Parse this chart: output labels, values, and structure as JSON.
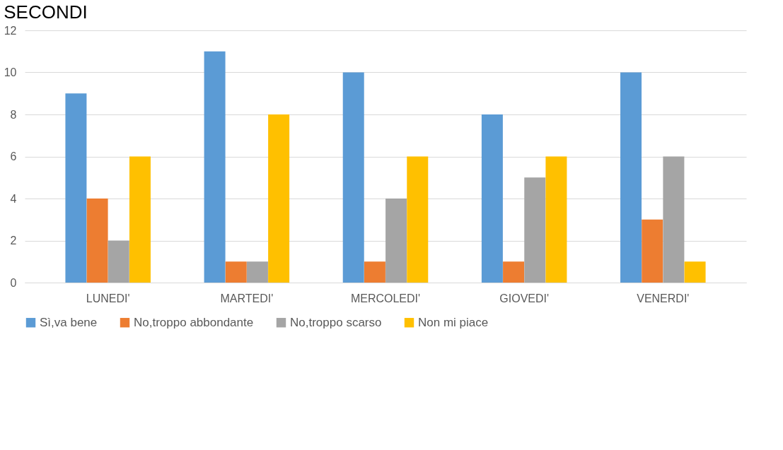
{
  "chart_data": {
    "type": "bar",
    "title": "SECONDI",
    "categories": [
      "LUNEDI'",
      "MARTEDI'",
      "MERCOLEDI'",
      "GIOVEDI'",
      "VENERDI'"
    ],
    "series": [
      {
        "name": "Sì,va bene",
        "color": "#5b9bd5",
        "values": [
          9,
          11,
          10,
          8,
          10
        ]
      },
      {
        "name": "No,troppo abbondante",
        "color": "#ed7d31",
        "values": [
          4,
          1,
          1,
          1,
          3
        ]
      },
      {
        "name": "No,troppo scarso",
        "color": "#a5a5a5",
        "values": [
          2,
          1,
          4,
          5,
          6
        ]
      },
      {
        "name": "Non mi piace",
        "color": "#ffc000",
        "values": [
          6,
          8,
          6,
          6,
          1
        ]
      }
    ],
    "ylim": [
      0,
      12
    ],
    "yticks": [
      0,
      2,
      4,
      6,
      8,
      10,
      12
    ],
    "grid": "y",
    "legend": "bottom"
  }
}
